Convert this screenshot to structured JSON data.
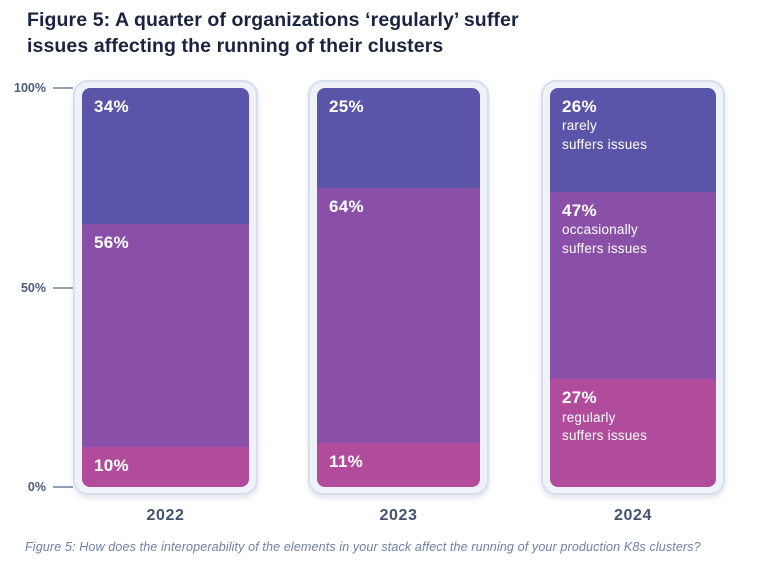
{
  "figure": {
    "title": "Figure 5: A quarter of organizations ‘regularly’ suffer issues affecting the running of their clusters",
    "caption": "Figure 5: How does the interoperability of the elements in your stack affect the running of your production K8s clusters?"
  },
  "chart_data": {
    "type": "bar",
    "variant": "stacked-100-percent-columns",
    "title": "Figure 5: A quarter of organizations ‘regularly’ suffer issues affecting the running of their clusters",
    "categories": [
      "2022",
      "2023",
      "2024"
    ],
    "series": [
      {
        "name": "rarely suffers issues",
        "color": "#5a55a9",
        "values": [
          34,
          25,
          26
        ]
      },
      {
        "name": "occasionally suffers issues",
        "color": "#8a50a8",
        "values": [
          56,
          64,
          47
        ]
      },
      {
        "name": "regularly suffers issues",
        "color": "#b14c9d",
        "values": [
          10,
          11,
          27
        ]
      }
    ],
    "ylim": [
      0,
      100
    ],
    "yticks": [
      {
        "label": "100%",
        "value": 100
      },
      {
        "label": "50%",
        "value": 50
      },
      {
        "label": "0%",
        "value": 0
      }
    ],
    "grid": false,
    "legend": "none; series names written inline on the 2024 column",
    "bars": [
      {
        "category": "2022",
        "segments": [
          {
            "value": 34,
            "label": "34%",
            "sublabel": ""
          },
          {
            "value": 56,
            "label": "56%",
            "sublabel": ""
          },
          {
            "value": 10,
            "label": "10%",
            "sublabel": ""
          }
        ]
      },
      {
        "category": "2023",
        "segments": [
          {
            "value": 25,
            "label": "25%",
            "sublabel": ""
          },
          {
            "value": 64,
            "label": "64%",
            "sublabel": ""
          },
          {
            "value": 11,
            "label": "11%",
            "sublabel": ""
          }
        ]
      },
      {
        "category": "2024",
        "segments": [
          {
            "value": 26,
            "label": "26%",
            "sublabel": "rarely\nsuffers issues"
          },
          {
            "value": 47,
            "label": "47%",
            "sublabel": "occasionally\nsuffers issues"
          },
          {
            "value": 27,
            "label": "27%",
            "sublabel": "regularly\nsuffers issues"
          }
        ]
      }
    ]
  },
  "colors": {
    "segment_rarely": "#5a55a9",
    "segment_occasionally": "#8a50a8",
    "segment_regularly": "#b14c9d",
    "title_text": "#1a2440",
    "axis_text": "#4c5c79",
    "year_text": "#42526f",
    "caption_text": "#7081a6",
    "card_border": "#d6dfec",
    "card_fill": "#eff3f9"
  }
}
